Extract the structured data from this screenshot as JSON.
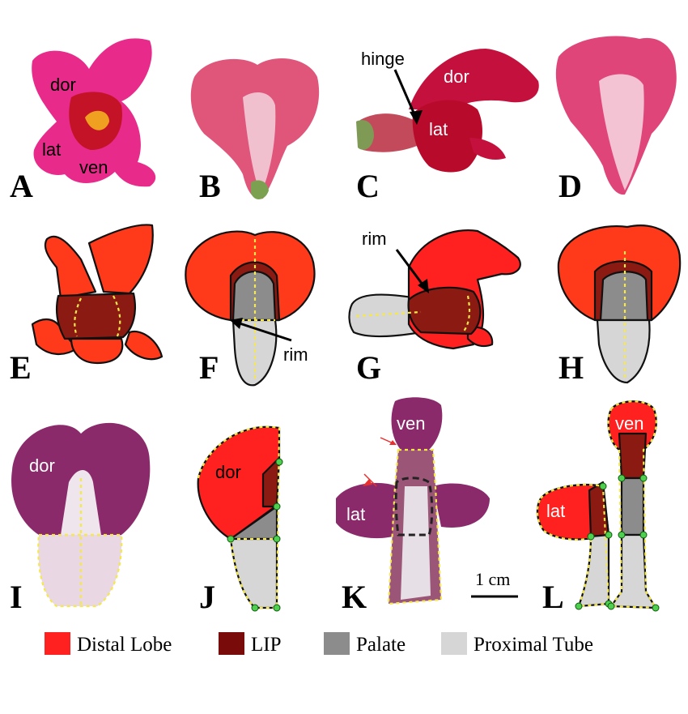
{
  "colors": {
    "distal_lobe": "#ff2020",
    "lip": "#7a0b0b",
    "palate": "#8c8c8c",
    "proximal_tube": "#d6d6d6",
    "dashed_outline": "#f5e84a",
    "node": "#4fcf4f"
  },
  "panels": {
    "A": {
      "letter": "A",
      "labels": [
        "dor",
        "lat",
        "ven"
      ]
    },
    "B": {
      "letter": "B"
    },
    "C": {
      "letter": "C",
      "labels": [
        "dor",
        "lat"
      ],
      "callout": "hinge"
    },
    "D": {
      "letter": "D"
    },
    "E": {
      "letter": "E"
    },
    "F": {
      "letter": "F",
      "callout": "rim"
    },
    "G": {
      "letter": "G",
      "callout": "rim"
    },
    "H": {
      "letter": "H"
    },
    "I": {
      "letter": "I",
      "labels": [
        "dor"
      ]
    },
    "J": {
      "letter": "J",
      "labels": [
        "dor"
      ]
    },
    "K": {
      "letter": "K",
      "labels": [
        "ven",
        "lat"
      ]
    },
    "L": {
      "letter": "L",
      "labels": [
        "ven",
        "lat"
      ]
    }
  },
  "scale_bar": {
    "label": "1 cm"
  },
  "legend": [
    {
      "label": "Distal Lobe",
      "color": "#ff2020"
    },
    {
      "label": "LIP",
      "color": "#7a0b0b"
    },
    {
      "label": "Palate",
      "color": "#8c8c8c"
    },
    {
      "label": "Proximal Tube",
      "color": "#d6d6d6"
    }
  ]
}
